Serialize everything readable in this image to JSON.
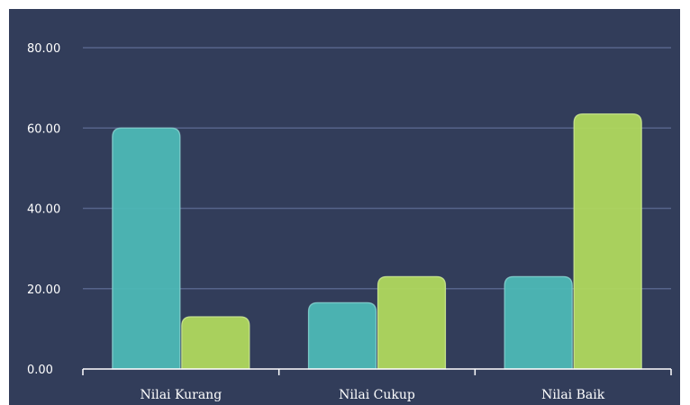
{
  "chart_data": {
    "type": "bar",
    "categories": [
      "Nilai Kurang",
      "Nilai Cukup",
      "Nilai Baik"
    ],
    "series": [
      {
        "values": [
          60,
          16.5,
          23
        ],
        "color": "#4db8b6"
      },
      {
        "values": [
          13,
          23,
          63.5
        ],
        "color": "#b0d85e"
      }
    ],
    "ylim": [
      0,
      80
    ],
    "yticks": [
      "0.00",
      "20.00",
      "40.00",
      "60.00",
      "80.00"
    ],
    "grid": true,
    "legend": "none",
    "background": "#323d5a",
    "gridline_color": "#56648a"
  }
}
